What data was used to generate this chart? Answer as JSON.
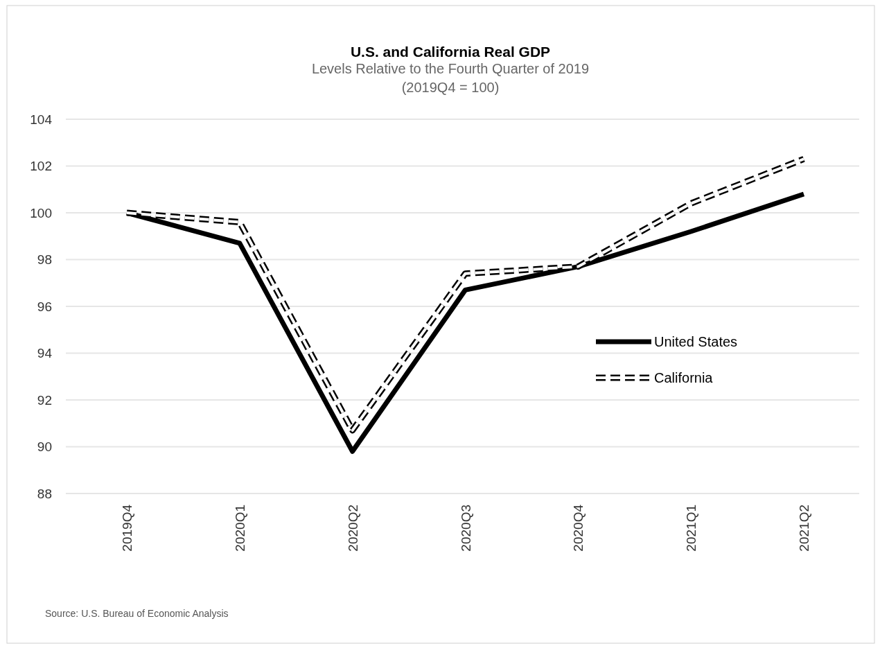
{
  "chart_data": {
    "type": "line",
    "title": "U.S. and California Real GDP",
    "subtitle": "Levels Relative to the Fourth Quarter of 2019\n(2019Q4 = 100)",
    "categories": [
      "2019Q4",
      "2020Q1",
      "2020Q2",
      "2020Q3",
      "2020Q4",
      "2021Q1",
      "2021Q2"
    ],
    "series": [
      {
        "name": "United States",
        "color": "#000000",
        "line_style": "solid",
        "values": [
          100,
          98.7,
          89.8,
          96.7,
          97.7,
          99.2,
          100.8
        ]
      },
      {
        "name": "California",
        "color": "#000000",
        "line_style": "dashed",
        "values": [
          100,
          99.6,
          90.7,
          97.4,
          97.7,
          100.4,
          102.3
        ]
      }
    ],
    "ylim": [
      88,
      104
    ],
    "yticks": [
      88,
      90,
      92,
      94,
      96,
      98,
      100,
      102,
      104
    ],
    "grid": "y",
    "legend": "right",
    "annotations": [
      "Source: U.S. Bureau of Economic Analysis"
    ]
  }
}
